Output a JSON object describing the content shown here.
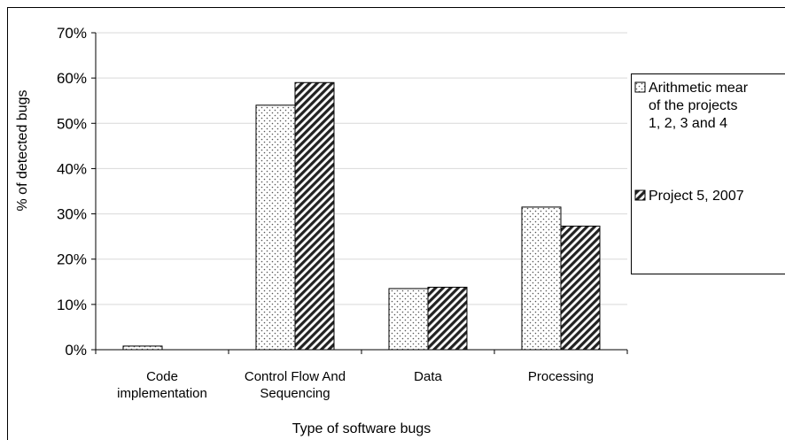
{
  "chart_data": {
    "type": "bar",
    "title": "",
    "xlabel": "Type of software bugs",
    "ylabel": "% of detected bugs",
    "ylim": [
      0,
      70
    ],
    "yticks": [
      "0%",
      "10%",
      "20%",
      "30%",
      "40%",
      "50%",
      "60%",
      "70%"
    ],
    "grid": true,
    "legend_position": "right",
    "categories": [
      [
        "Code",
        "implementation"
      ],
      [
        "Control Flow And",
        "Sequencing"
      ],
      [
        "Data"
      ],
      [
        "Processing"
      ]
    ],
    "series": [
      {
        "name_lines": [
          "Arithmetic mear",
          "of the projects",
          "1, 2, 3 and 4"
        ],
        "pattern": "dotted",
        "values": [
          0.8,
          54,
          13.5,
          31.5
        ]
      },
      {
        "name_lines": [
          "Project 5, 2007"
        ],
        "pattern": "diagonal-stripes",
        "values": [
          0,
          59,
          13.8,
          27.3
        ]
      }
    ]
  }
}
